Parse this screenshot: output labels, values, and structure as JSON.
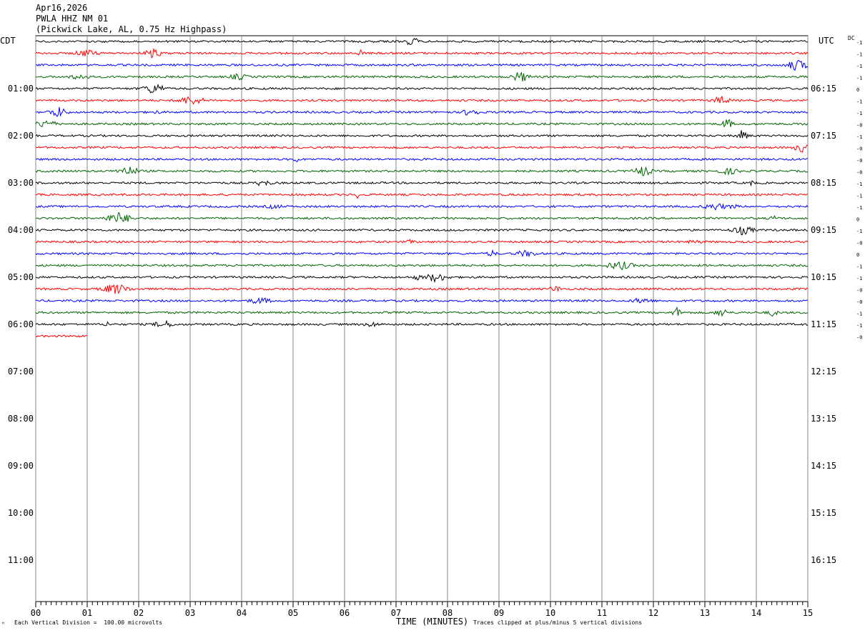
{
  "header": {
    "date": "Apr16,2026",
    "station": "PWLA HHZ NM 01",
    "location": "(Pickwick Lake, AL, 0.75 Hz Highpass)"
  },
  "left_tz": "CDT",
  "right_tz": "UTC",
  "dc_label": "DC",
  "footer": {
    "scale_note": "Each Vertical Division =  100.00 microvolts",
    "clip_note": "Traces clipped at plus/minus 5 vertical divisions",
    "corner_mark": "ᴴ"
  },
  "chart_data": {
    "type": "line",
    "xlabel": "TIME (MINUTES)",
    "x_ticks": [
      "00",
      "01",
      "02",
      "03",
      "04",
      "05",
      "06",
      "07",
      "08",
      "09",
      "10",
      "11",
      "12",
      "13",
      "14",
      "15"
    ],
    "xlim": [
      0,
      15
    ],
    "grid": true,
    "left_time_labels": [
      "01:00",
      "02:00",
      "03:00",
      "04:00",
      "05:00",
      "06:00",
      "07:00",
      "08:00",
      "09:00",
      "10:00",
      "11:00"
    ],
    "right_time_labels": [
      "06:15",
      "07:15",
      "08:15",
      "09:15",
      "10:15",
      "11:15",
      "12:15",
      "13:15",
      "14:15",
      "15:15",
      "16:15"
    ],
    "trace_colors": [
      "#000000",
      "#ff0000",
      "#0000ff",
      "#006400"
    ],
    "trace_count": 26,
    "last_trace_minutes": 1.0,
    "dc_offsets": [
      "-1",
      "-1",
      "-1",
      "-1",
      "0",
      "-1",
      "-1",
      "-0",
      "-1",
      "-0",
      "-0",
      "-0",
      "-1",
      "-1",
      "-1",
      "0",
      "-1",
      "-0",
      "0",
      "-1",
      "-1",
      "-0",
      "-0",
      "-1",
      "-1",
      "-0"
    ]
  }
}
